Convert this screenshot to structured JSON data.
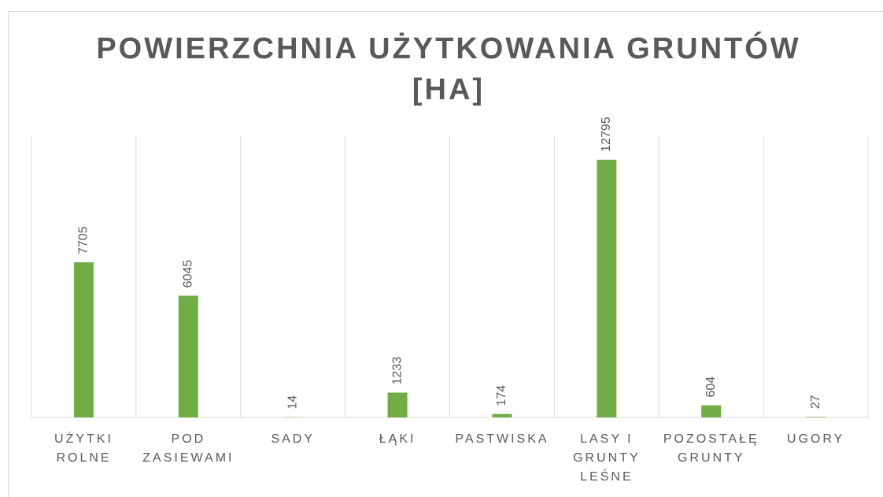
{
  "chart_data": {
    "type": "bar",
    "title": "POWIERZCHNIA UŻYTKOWANIA GRUNTÓW [HA]",
    "categories": [
      "UŻYTKI ROLNE",
      "POD ZASIEWAMI",
      "SADY",
      "ŁĄKI",
      "PASTWISKA",
      "LASY I GRUNTY LEŚNE",
      "POZOSTAŁĘ GRUNTY",
      "UGORY"
    ],
    "values": [
      7705,
      6045,
      14,
      1233,
      174,
      12795,
      604,
      27
    ],
    "color": "#70ad47",
    "ylim": [
      0,
      14000
    ]
  }
}
